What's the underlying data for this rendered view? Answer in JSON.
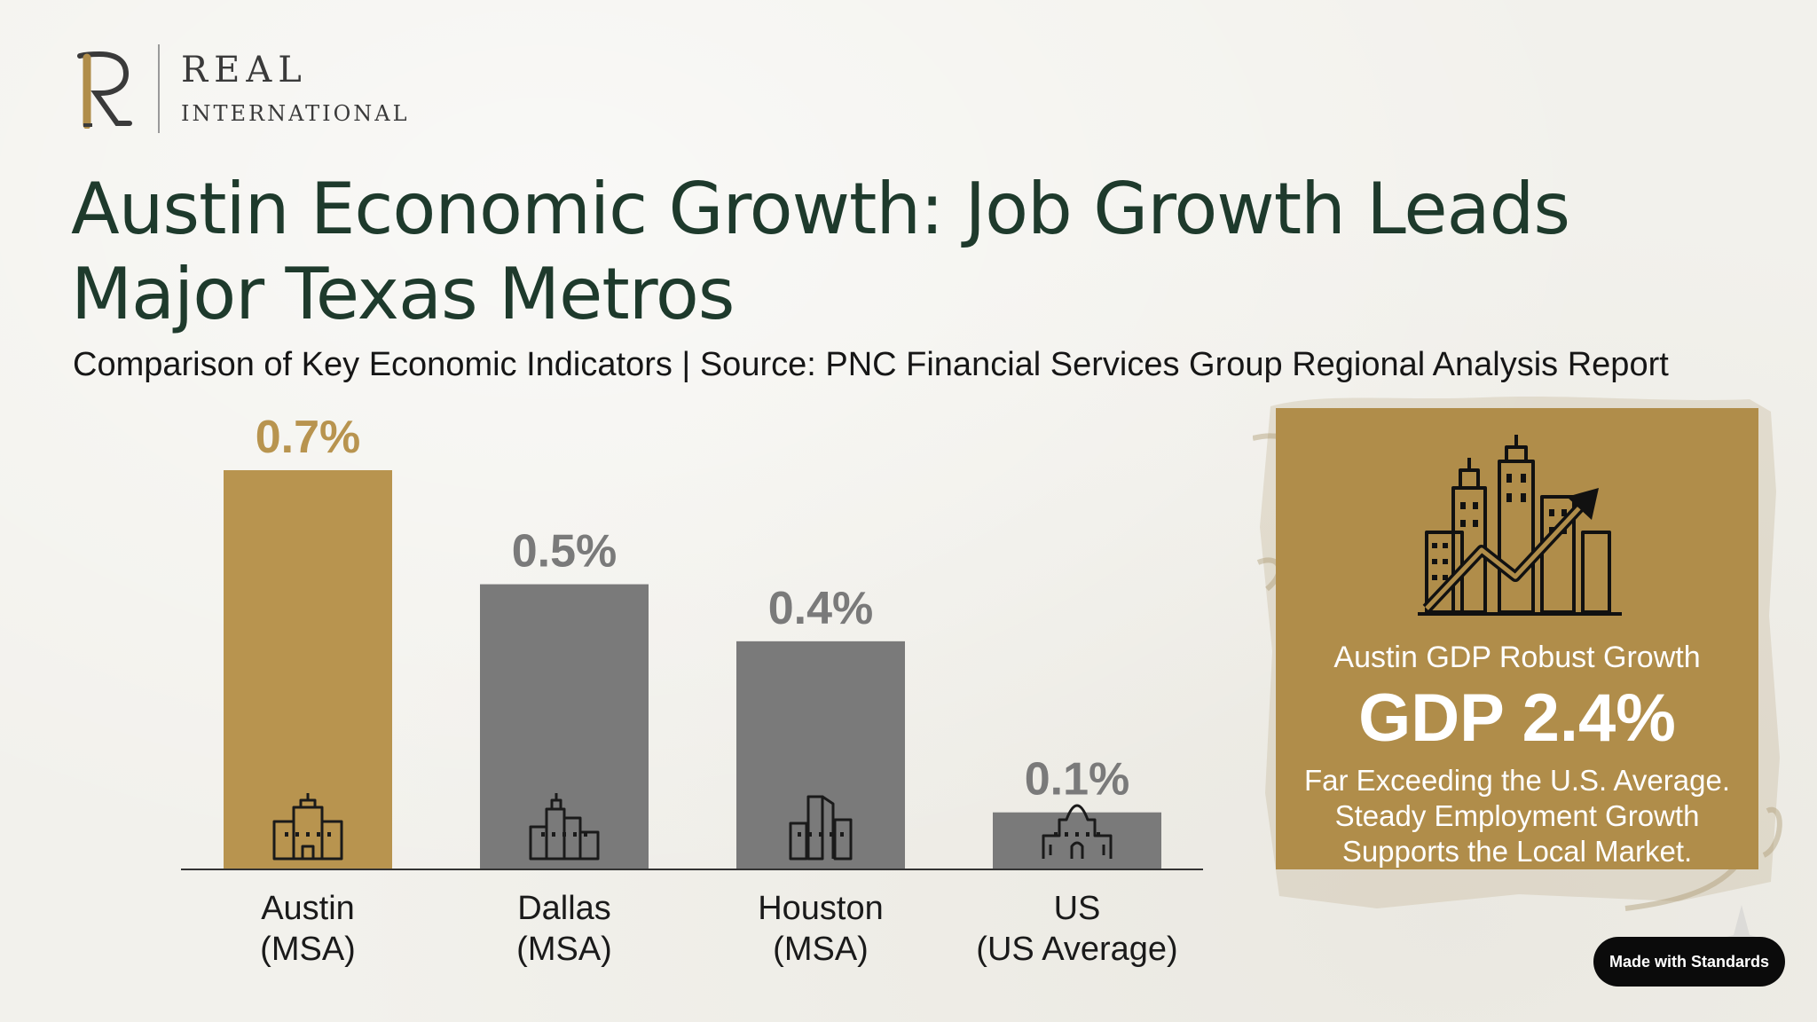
{
  "logo": {
    "mark": "R",
    "word1": "REAL",
    "word2": "INTERNATIONAL"
  },
  "title": "Austin Economic Growth: Job Growth Leads Major Texas Metros",
  "subtitle": "Comparison of Key Economic Indicators | Source: PNC Financial Services Group Regional Analysis Report",
  "chart_data": {
    "type": "bar",
    "categories": [
      {
        "line1": "Austin",
        "line2": "(MSA)"
      },
      {
        "line1": "Dallas",
        "line2": "(MSA)"
      },
      {
        "line1": "Houston",
        "line2": "(MSA)"
      },
      {
        "line1": "US",
        "line2": "(US Average)"
      }
    ],
    "values": [
      0.7,
      0.5,
      0.4,
      0.1
    ],
    "value_labels": [
      "0.7%",
      "0.5%",
      "0.4%",
      "0.1%"
    ],
    "bar_colors": [
      "#b8944f",
      "#7a7a7a",
      "#7a7a7a",
      "#7a7a7a"
    ],
    "label_colors": [
      "#b8944f",
      "#7a7a7a",
      "#7a7a7a",
      "#7a7a7a"
    ],
    "icons": [
      "office-building-icon",
      "city-skyline-icon",
      "skyscraper-icon",
      "capitol-building-icon"
    ],
    "ylim": [
      0,
      0.7
    ],
    "grid": false,
    "legend": "none"
  },
  "callout": {
    "icon": "city-growth-arrow-icon",
    "heading": "Austin GDP Robust Growth",
    "value": "GDP 2.4%",
    "body": [
      "Far Exceeding the U.S. Average.",
      "Steady Employment Growth",
      "Supports the Local Market."
    ],
    "color": "#b08d4a"
  },
  "badge": {
    "label": "Made with Standards"
  }
}
